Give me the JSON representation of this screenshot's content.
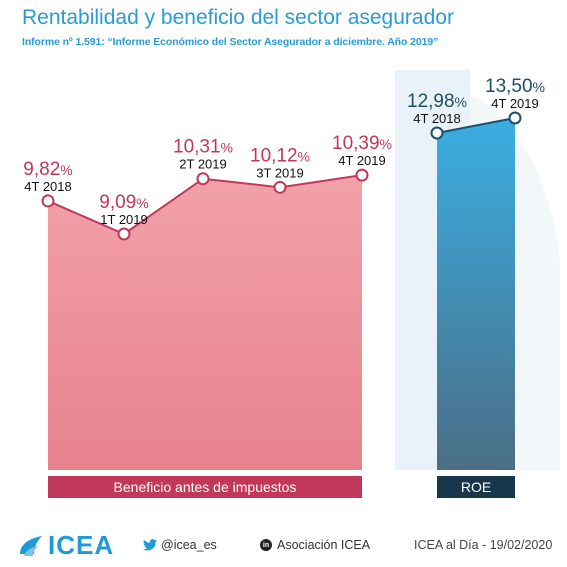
{
  "header": {
    "title": "Rentabilidad y beneficio del sector asegurador",
    "subtitle": "Informe nº 1.591: “Informe Económico del Sector Asegurador a diciembre. Año 2019”"
  },
  "chart_data": [
    {
      "type": "area",
      "label": "Beneficio antes de impuestos",
      "color": "#f09aa2",
      "line_color": "#c0395a",
      "points": [
        {
          "period": "4T 2018",
          "value": 9.82,
          "value_main": "9,82",
          "unit": "%"
        },
        {
          "period": "1T 2019",
          "value": 9.09,
          "value_main": "9,09",
          "unit": "%"
        },
        {
          "period": "2T 2019",
          "value": 10.31,
          "value_main": "10,31",
          "unit": "%"
        },
        {
          "period": "3T 2019",
          "value": 10.12,
          "value_main": "10,12",
          "unit": "%"
        },
        {
          "period": "4T 2019",
          "value": 10.39,
          "value_main": "10,39",
          "unit": "%"
        }
      ]
    },
    {
      "type": "area",
      "label": "ROE",
      "color": "#3aa6dc",
      "line_color": "#1d4e6a",
      "points": [
        {
          "period": "4T 2018",
          "value": 12.98,
          "value_main": "12,98",
          "unit": "%"
        },
        {
          "period": "4T 2019",
          "value": 13.5,
          "value_main": "13,50",
          "unit": "%"
        }
      ]
    }
  ],
  "footer": {
    "logo_text": "ICEA",
    "twitter": "@icea_es",
    "linkedin_badge": "in",
    "linkedin": "Asociación ICEA",
    "date_text": "ICEA al Día - 19/02/2020"
  }
}
